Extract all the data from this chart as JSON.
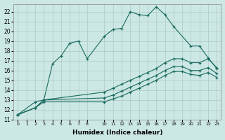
{
  "xlabel": "Humidex (Indice chaleur)",
  "bg_color": "#cce8e4",
  "grid_color": "#b0c8c4",
  "line_color": "#1a6b60",
  "xlim": [
    -0.5,
    23.5
  ],
  "ylim": [
    11,
    22.8
  ],
  "xticks": [
    0,
    1,
    2,
    3,
    4,
    5,
    6,
    7,
    8,
    10,
    11,
    12,
    13,
    14,
    15,
    16,
    17,
    18,
    19,
    20,
    21,
    22,
    23
  ],
  "yticks": [
    11,
    12,
    13,
    14,
    15,
    16,
    17,
    18,
    19,
    20,
    21,
    22
  ],
  "series": [
    {
      "x": [
        0,
        2,
        3,
        4,
        5,
        6,
        7,
        8,
        10,
        11,
        12,
        13,
        14,
        15,
        16,
        17,
        18,
        20,
        21,
        22,
        23
      ],
      "y": [
        11.5,
        12.8,
        13.0,
        16.7,
        17.5,
        18.8,
        19.0,
        17.2,
        19.5,
        20.2,
        20.3,
        22.0,
        21.7,
        21.6,
        22.5,
        21.7,
        20.5,
        18.5,
        18.5,
        17.3,
        16.2
      ]
    },
    {
      "x": [
        0,
        2,
        3,
        10,
        11,
        12,
        13,
        14,
        15,
        16,
        17,
        18,
        19,
        20,
        21,
        22,
        23
      ],
      "y": [
        11.5,
        12.2,
        13.0,
        13.8,
        14.2,
        14.6,
        15.0,
        15.4,
        15.8,
        16.2,
        16.8,
        17.2,
        17.2,
        16.8,
        16.8,
        17.2,
        16.3
      ]
    },
    {
      "x": [
        0,
        2,
        3,
        10,
        11,
        12,
        13,
        14,
        15,
        16,
        17,
        18,
        19,
        20,
        21,
        22,
        23
      ],
      "y": [
        11.5,
        12.2,
        13.0,
        13.2,
        13.5,
        13.9,
        14.3,
        14.7,
        15.1,
        15.5,
        16.0,
        16.4,
        16.4,
        16.0,
        16.0,
        16.3,
        15.7
      ]
    },
    {
      "x": [
        0,
        2,
        3,
        10,
        11,
        12,
        13,
        14,
        15,
        16,
        17,
        18,
        19,
        20,
        21,
        22,
        23
      ],
      "y": [
        11.5,
        12.2,
        12.8,
        12.8,
        13.1,
        13.4,
        13.8,
        14.2,
        14.6,
        15.0,
        15.5,
        15.9,
        15.9,
        15.6,
        15.5,
        15.8,
        15.3
      ]
    }
  ]
}
